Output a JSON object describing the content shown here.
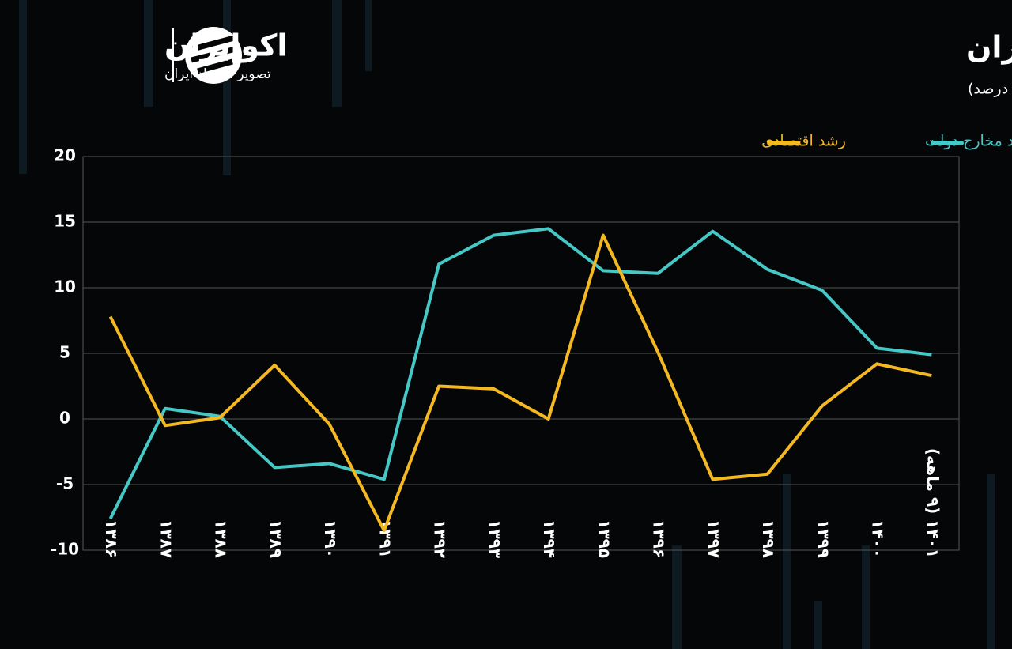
{
  "brand": {
    "name": "اکوایران",
    "tagline": "تصویر اقتصاد ایران"
  },
  "chart_data": {
    "type": "line",
    "title": "رشد مخارج سالانه دولت در ایران",
    "subtitle": "(واحد: درصد)",
    "categories": [
      "۱۳۸۶",
      "۱۳۸۷",
      "۱۳۸۸",
      "۱۳۸۹",
      "۱۳۹۰",
      "۱۳۹۱",
      "۱۳۹۲",
      "۱۳۹۳",
      "۱۳۹۴",
      "۱۳۹۵",
      "۱۳۹۶",
      "۱۳۹۷",
      "۱۳۹۸",
      "۱۳۹۹",
      "۱۴۰۰",
      "۱۴۰۱ (۹ ماهه)"
    ],
    "series": [
      {
        "name": "رشد مخارج دولت",
        "color": "#45c8c6",
        "values": [
          -7.6,
          0.8,
          0.2,
          -3.7,
          -3.4,
          -4.6,
          11.8,
          14.0,
          14.5,
          11.3,
          11.1,
          14.3,
          11.4,
          9.8,
          5.4,
          4.9
        ]
      },
      {
        "name": "رشد اقتصادی",
        "color": "#f4b922",
        "values": [
          7.8,
          -0.5,
          0.1,
          4.1,
          -0.4,
          -8.5,
          2.5,
          2.3,
          0.0,
          14.0,
          5.1,
          -4.6,
          -4.2,
          1.0,
          4.2,
          3.3
        ]
      }
    ],
    "ylim": [
      -10,
      20
    ],
    "yticks": [
      -10,
      -5,
      0,
      5,
      10,
      15,
      20
    ],
    "grid": true
  }
}
